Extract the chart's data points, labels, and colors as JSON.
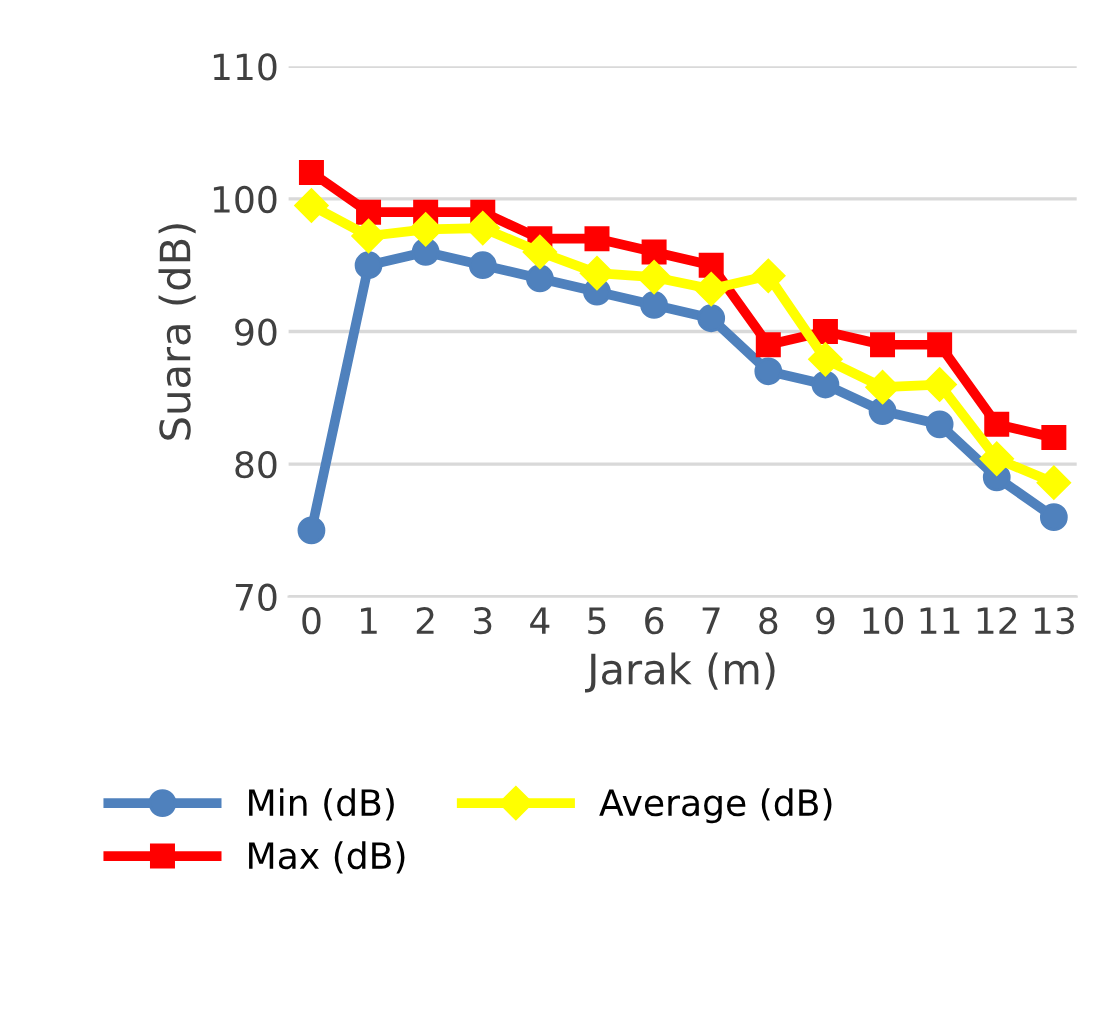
{
  "chart_data": {
    "type": "line",
    "xlabel": "Jarak (m)",
    "ylabel": "Suara (dB)",
    "categories": [
      "0",
      "1",
      "2",
      "3",
      "4",
      "5",
      "6",
      "7",
      "8",
      "9",
      "10",
      "11",
      "12",
      "13"
    ],
    "ylim": [
      70,
      110
    ],
    "yticks": [
      70,
      80,
      90,
      100,
      110
    ],
    "grid": "y",
    "legend": "bottom",
    "series": [
      {
        "name": "Min (dB)",
        "color": "#4f81bd",
        "marker": "circle",
        "values": [
          75,
          95,
          96,
          95,
          94,
          93,
          92,
          91,
          87,
          86,
          84,
          83,
          79,
          76
        ]
      },
      {
        "name": "Max (dB)",
        "color": "#ff0000",
        "marker": "square",
        "values": [
          102,
          99,
          99,
          99,
          97,
          97,
          96,
          95,
          89,
          90,
          89,
          89,
          83,
          82
        ]
      },
      {
        "name": "Average (dB)",
        "color": "#ffff00",
        "marker": "diamond",
        "values": [
          99.5,
          97.2,
          97.7,
          97.8,
          96,
          94.4,
          94.1,
          93.2,
          94.2,
          87.9,
          85.8,
          86,
          80.4,
          78.6
        ]
      }
    ]
  }
}
